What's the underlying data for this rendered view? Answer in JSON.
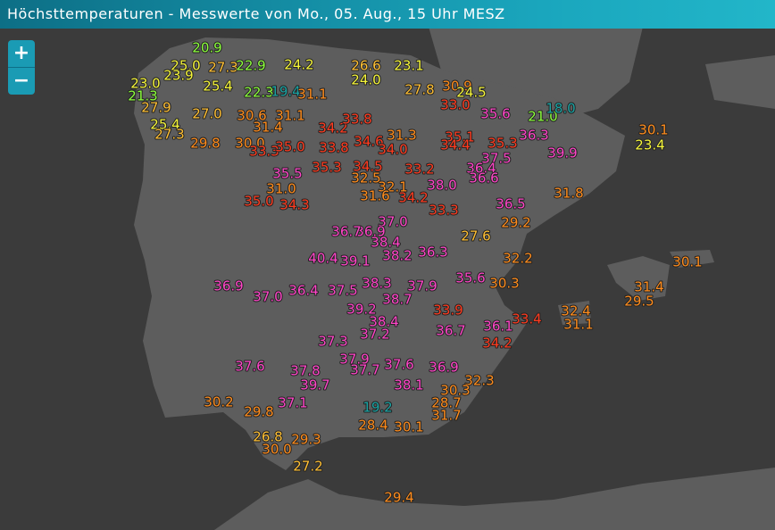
{
  "header": {
    "title": "Höchsttemperaturen - Messwerte von Mo., 05. Aug., 15 Uhr MESZ"
  },
  "controls": {
    "zoom_in": "+",
    "zoom_out": "−"
  },
  "readings": [
    "20.9",
    "25.0",
    "27.3",
    "22.9",
    "24.2",
    "26.6",
    "23.1",
    "23.9",
    "25.4",
    "22.3",
    "19.4",
    "31.1",
    "24.0",
    "27.8",
    "30.9",
    "24.5",
    "23.0",
    "21.3",
    "27.9",
    "25.4",
    "27.3",
    "27.0",
    "30.6",
    "31.1",
    "33.0",
    "35.6",
    "21.0",
    "18.0",
    "30.1",
    "23.4",
    "31.4",
    "34.2",
    "33.8",
    "31.3",
    "35.1",
    "35.3",
    "36.3",
    "39.9",
    "29.8",
    "30.0",
    "33.3",
    "35.0",
    "33.8",
    "34.6",
    "34.0",
    "34.4",
    "37.5",
    "36.4",
    "36.6",
    "35.5",
    "35.3",
    "34.5",
    "33.2",
    "32.5",
    "31.0",
    "32.1",
    "38.0",
    "34.2",
    "35.0",
    "34.3",
    "31.6",
    "33.3",
    "36.5",
    "31.8",
    "27.6",
    "29.2",
    "37.0",
    "36.9",
    "36.7",
    "36.3",
    "38.4",
    "38.2",
    "40.4",
    "39.1",
    "32.2",
    "35.6",
    "30.3",
    "30.1",
    "29.5",
    "31.4",
    "32.4",
    "31.1",
    "36.9",
    "37.0",
    "36.4",
    "37.5",
    "38.3",
    "37.9",
    "38.7",
    "39.2",
    "33.9",
    "38.4",
    "37.2",
    "37.3",
    "36.7",
    "36.1",
    "33.4",
    "34.2",
    "37.9",
    "37.6",
    "36.9",
    "37.7",
    "37.8",
    "37.6",
    "38.1",
    "32.3",
    "30.3",
    "39.7",
    "37.1",
    "30.2",
    "29.8",
    "28.7",
    "31.7",
    "19.2",
    "30.1",
    "28.4",
    "26.8",
    "29.3",
    "30.0",
    "27.2",
    "29.4"
  ]
}
